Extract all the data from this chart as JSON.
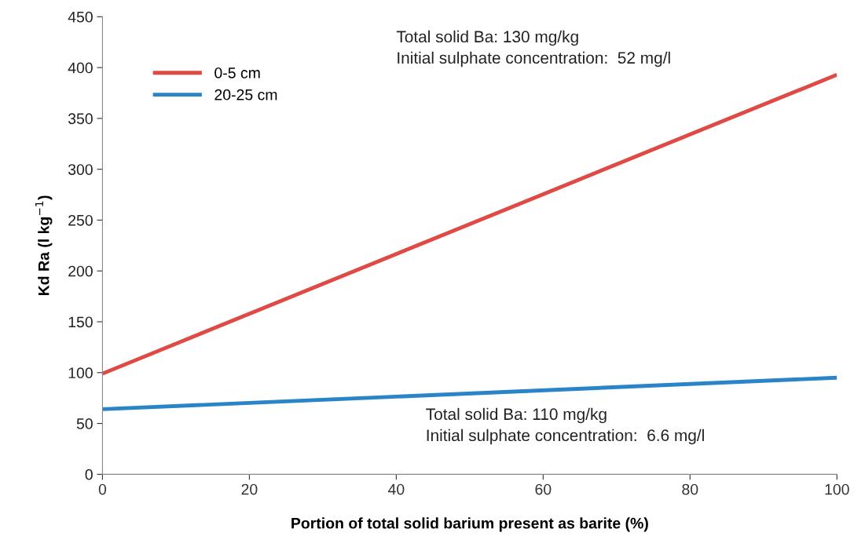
{
  "chart_data": {
    "type": "line",
    "xlabel": "Portion of total solid barium present as barite (%)",
    "ylabel": "Kd Ra (l kg$^{−1}$)",
    "x": [
      0,
      100
    ],
    "series": [
      {
        "name": "0-5 cm",
        "color": "#e04a44",
        "values": [
          99,
          393
        ]
      },
      {
        "name": "20-25 cm",
        "color": "#2a84c8",
        "values": [
          64,
          95
        ]
      }
    ],
    "xlim": [
      0,
      100
    ],
    "xticks": [
      0,
      20,
      40,
      60,
      80,
      100
    ],
    "ylim": [
      0,
      450
    ],
    "yticks": [
      0,
      50,
      100,
      150,
      200,
      250,
      300,
      350,
      400,
      450
    ],
    "grid": false,
    "legend": "top left",
    "marker": "none",
    "line_style": "solid",
    "annotations": [
      "Total solid Ba: 130 mg/kg\nInitial sulphate concentration:  52 mg/l",
      "Total solid Ba: 110 mg/kg\nInitial sulphate concentration:  6.6 mg/l"
    ]
  }
}
